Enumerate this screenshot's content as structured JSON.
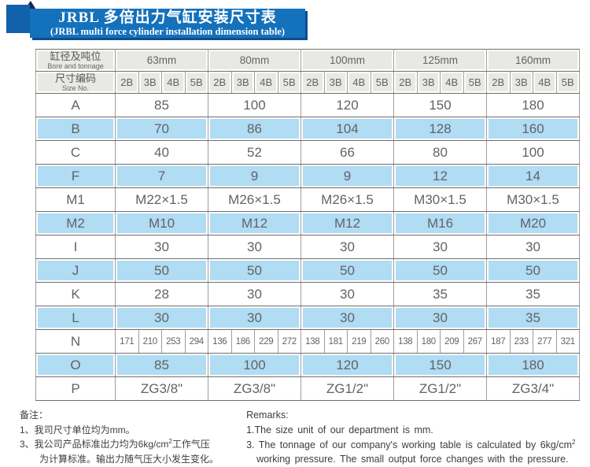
{
  "banner": {
    "title_cn": "JRBL 多倍出力气缸安装尺寸表",
    "title_en": "(JRBL multi force cylinder installation dimension table)"
  },
  "table": {
    "corner": {
      "bore_cn": "缸径及吨位",
      "bore_en": "Bore and tonnage",
      "size_cn": "尺寸编码",
      "size_en": "Size No."
    },
    "bores": [
      "63mm",
      "80mm",
      "100mm",
      "125mm",
      "160mm"
    ],
    "size_codes": [
      "2B",
      "3B",
      "4B",
      "5B"
    ],
    "rows": [
      {
        "label": "A",
        "type": "merged",
        "values": [
          "85",
          "100",
          "120",
          "150",
          "180"
        ]
      },
      {
        "label": "B",
        "type": "merged",
        "values": [
          "70",
          "86",
          "104",
          "128",
          "160"
        ]
      },
      {
        "label": "C",
        "type": "merged",
        "values": [
          "40",
          "52",
          "66",
          "80",
          "100"
        ]
      },
      {
        "label": "F",
        "type": "merged",
        "values": [
          "7",
          "9",
          "9",
          "12",
          "14"
        ]
      },
      {
        "label": "M1",
        "type": "merged",
        "values": [
          "M22×1.5",
          "M26×1.5",
          "M26×1.5",
          "M30×1.5",
          "M30×1.5"
        ]
      },
      {
        "label": "M2",
        "type": "merged",
        "values": [
          "M10",
          "M12",
          "M12",
          "M16",
          "M20"
        ]
      },
      {
        "label": "I",
        "type": "merged",
        "values": [
          "30",
          "30",
          "30",
          "30",
          "30"
        ]
      },
      {
        "label": "J",
        "type": "merged",
        "values": [
          "50",
          "50",
          "50",
          "50",
          "50"
        ]
      },
      {
        "label": "K",
        "type": "merged",
        "values": [
          "28",
          "30",
          "30",
          "35",
          "35"
        ]
      },
      {
        "label": "L",
        "type": "merged",
        "values": [
          "30",
          "30",
          "30",
          "30",
          "35"
        ]
      },
      {
        "label": "N",
        "type": "split",
        "values": [
          [
            "171",
            "210",
            "253",
            "294"
          ],
          [
            "136",
            "186",
            "229",
            "272"
          ],
          [
            "138",
            "181",
            "219",
            "260"
          ],
          [
            "138",
            "180",
            "209",
            "267"
          ],
          [
            "187",
            "233",
            "277",
            "321"
          ]
        ]
      },
      {
        "label": "O",
        "type": "merged",
        "values": [
          "85",
          "100",
          "120",
          "150",
          "180"
        ]
      },
      {
        "label": "P",
        "type": "merged",
        "values": [
          "ZG3/8\"",
          "ZG3/8\"",
          "ZG1/2\"",
          "ZG1/2\"",
          "ZG3/4\""
        ]
      }
    ]
  },
  "notes_cn": {
    "heading": "备注：",
    "line1": "1、我司尺寸单位均为mm。",
    "line2a": "3、我公司产品标准出力均为6kg/cm",
    "line2sup": "2",
    "line2b": "工作气压",
    "line3": "为计算标准。输出力随气压大小发生变化。"
  },
  "notes_en": {
    "heading": "Remarks:",
    "line1": "1.The size unit of our department is mm.",
    "line2a": "3. The tonnage of our company's working table is calculated by 6kg/cm",
    "line2sup": "2",
    "line3": "working pressure. The small output force changes with the pressure."
  },
  "colors": {
    "banner-blue": "#1471bb",
    "banner-shadow": "#0e4d8f",
    "deco-square": "#1261ab",
    "deco-fold": "#17265a",
    "header-gray": "#e8e8e4",
    "row-blue": "#b0dcf4",
    "border-dark": "#6f6f6f",
    "border-light": "#9e9e9e",
    "table-text": "#636363",
    "note-text": "#3d3d3d"
  }
}
